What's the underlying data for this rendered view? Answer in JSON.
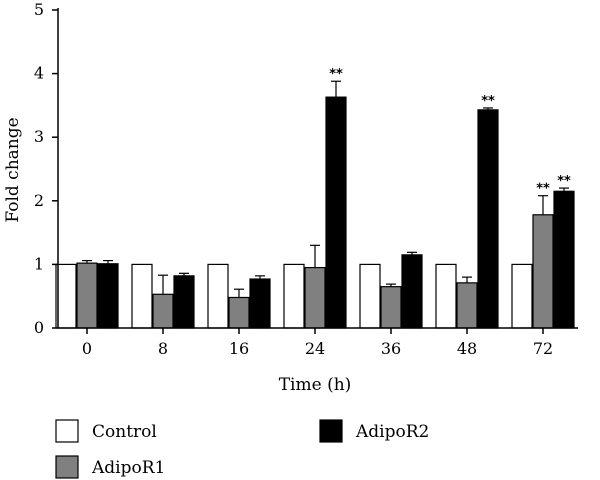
{
  "chart_data": {
    "type": "bar",
    "xlabel": "Time (h)",
    "ylabel": "Fold change",
    "ylim": [
      0,
      5
    ],
    "yticks": [
      0,
      1,
      2,
      3,
      4,
      5
    ],
    "categories": [
      "0",
      "8",
      "16",
      "24",
      "36",
      "48",
      "72"
    ],
    "series": [
      {
        "name": "Control",
        "color": "#ffffff",
        "values": [
          1.0,
          1.0,
          1.0,
          1.0,
          1.0,
          1.0,
          1.0
        ],
        "errors": [
          0,
          0,
          0,
          0,
          0,
          0,
          0
        ],
        "significance": [
          "",
          "",
          "",
          "",
          "",
          "",
          ""
        ]
      },
      {
        "name": "AdipoR1",
        "color": "#808080",
        "values": [
          1.02,
          0.53,
          0.48,
          0.95,
          0.65,
          0.71,
          1.78
        ],
        "errors": [
          0.04,
          0.3,
          0.13,
          0.35,
          0.04,
          0.09,
          0.3
        ],
        "significance": [
          "",
          "",
          "",
          "",
          "",
          "",
          "**"
        ]
      },
      {
        "name": "AdipoR2",
        "color": "#000000",
        "values": [
          1.01,
          0.82,
          0.77,
          3.63,
          1.15,
          3.43,
          2.15
        ],
        "errors": [
          0.05,
          0.04,
          0.05,
          0.25,
          0.04,
          0.03,
          0.05
        ],
        "significance": [
          "",
          "",
          "",
          "**",
          "",
          "**",
          "**"
        ]
      }
    ],
    "legend": {
      "placement": "bottom",
      "entries": [
        "Control",
        "AdipoR1",
        "AdipoR2"
      ]
    }
  }
}
